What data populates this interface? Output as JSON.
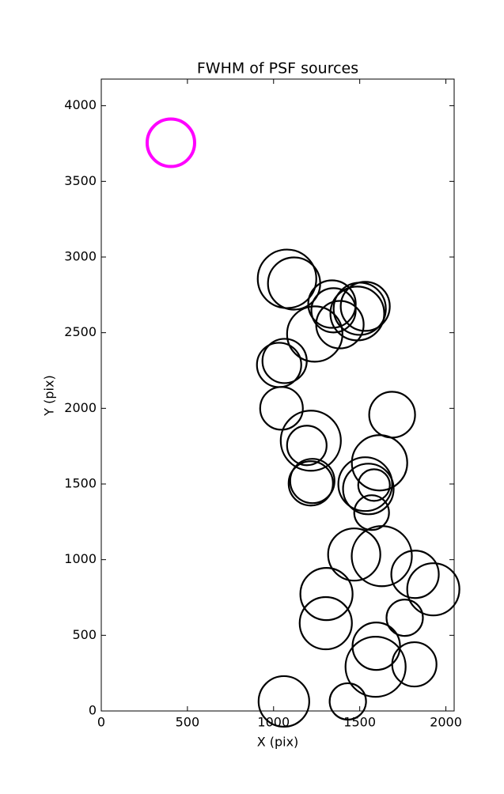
{
  "chart_data": {
    "type": "scatter",
    "title": "FWHM of PSF sources",
    "x_label": "X (pix)",
    "y_label": "Y (pix)",
    "xlim": [
      0,
      2048
    ],
    "ylim": [
      0,
      4176
    ],
    "xticks": [
      0,
      500,
      1000,
      1500,
      2000
    ],
    "yticks": [
      0,
      500,
      1000,
      1500,
      2000,
      2500,
      3000,
      3500,
      4000
    ],
    "series": [
      {
        "color": "#ff00ff",
        "x": [
          404
        ],
        "y": [
          3755
        ],
        "sizes": [
          30
        ]
      },
      {
        "color": "#000000",
        "x": [
          1078,
          1119,
          1239,
          1339,
          1348,
          1385,
          1500,
          1532,
          1486,
          1064,
          1032,
          1046,
          1216,
          1193,
          1688,
          1615,
          1532,
          1550,
          1583,
          1569,
          1225,
          1216,
          1468,
          1628,
          1821,
          1927,
          1307,
          1303,
          1761,
          1596,
          1592,
          1817,
          1060,
          1431
        ],
        "y": [
          2856,
          2825,
          2491,
          2689,
          2648,
          2553,
          2658,
          2674,
          2627,
          2313,
          2287,
          2000,
          1786,
          1755,
          1958,
          1640,
          1499,
          1467,
          1493,
          1311,
          1520,
          1504,
          1034,
          1023,
          903,
          804,
          773,
          580,
          616,
          428,
          292,
          308,
          63,
          63
        ],
        "sizes": [
          37,
          33,
          35,
          30,
          28,
          30,
          33,
          31,
          34,
          28,
          28,
          27,
          38,
          25,
          29,
          35,
          34,
          32,
          20,
          22,
          28,
          28,
          33,
          38,
          30,
          33,
          33,
          33,
          23,
          30,
          38,
          28,
          32,
          23
        ]
      }
    ]
  }
}
